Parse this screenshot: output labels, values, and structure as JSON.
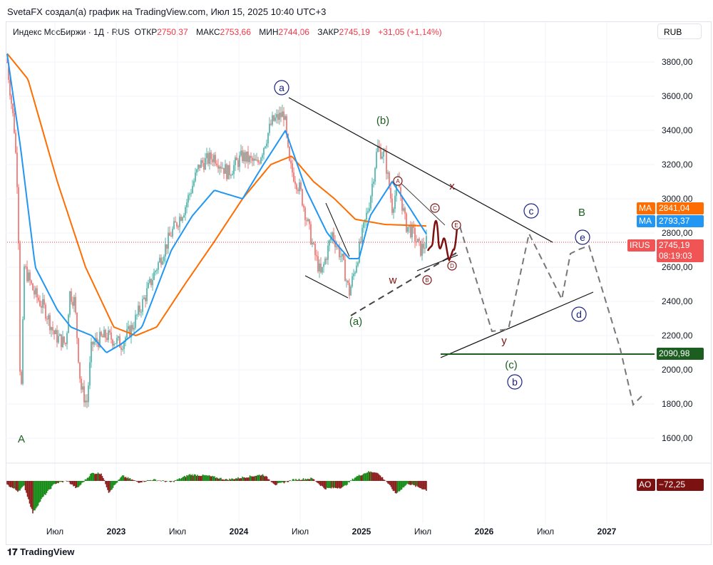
{
  "header": {
    "credit": "SvetaFX создал(а) график на TradingView.com, Июл 15, 2025 10:40 UTC+3",
    "symbol": "Индекс МосБиржи · 1Д · RUS",
    "open_label": "ОТКР",
    "open": "2750,37",
    "high_label": "МАКС",
    "high": "2753,66",
    "low_label": "МИН",
    "low": "2744,06",
    "close_label": "ЗАКР",
    "close": "2745,19",
    "change": "+31,05 (+1,14%)"
  },
  "currency": "RUB",
  "tags": {
    "ma200_label": "MA",
    "ma200": "2841,04",
    "ma50_label": "MA",
    "ma50": "2793,37",
    "symbol_label": "IRUS",
    "price": "2745,19",
    "countdown": "08:19:03",
    "level": "2090,98",
    "ao_label": "AO",
    "ao": "−72,25"
  },
  "colors": {
    "up": "#26a69a",
    "down": "#ef5350",
    "ma200": "#ff6d00",
    "ma50": "#2196f3",
    "ao_up": "#138a13",
    "ao_down": "#8b1a1a",
    "wave_green": "#1b5e20",
    "wave_blue": "#1a237e",
    "wave_red": "#7b1111"
  },
  "chart_data": {
    "type": "line",
    "title": "Индекс МосБиржи · 1Д",
    "ylim": [
      1500,
      3900
    ],
    "yticks": [
      "3800,00",
      "3600,00",
      "3400,00",
      "3200,00",
      "3000,00",
      "2800,00",
      "2600,00",
      "2400,00",
      "2200,00",
      "2000,00",
      "1800,00",
      "1600,00"
    ],
    "xticks": [
      "Июл",
      "2023",
      "Июл",
      "2024",
      "Июл",
      "2025",
      "Июл",
      "2026",
      "Июл",
      "2027"
    ],
    "price_waypoints": [
      [
        2022.11,
        3800
      ],
      [
        2022.17,
        3400
      ],
      [
        2022.2,
        3000
      ],
      [
        2022.22,
        1700
      ],
      [
        2022.25,
        2600
      ],
      [
        2022.33,
        2450
      ],
      [
        2022.42,
        2350
      ],
      [
        2022.5,
        2200
      ],
      [
        2022.59,
        2150
      ],
      [
        2022.62,
        2450
      ],
      [
        2022.66,
        2400
      ],
      [
        2022.71,
        1900
      ],
      [
        2022.76,
        1800
      ],
      [
        2022.8,
        2150
      ],
      [
        2022.92,
        2200
      ],
      [
        2023.04,
        2150
      ],
      [
        2023.13,
        2250
      ],
      [
        2023.22,
        2400
      ],
      [
        2023.33,
        2600
      ],
      [
        2023.45,
        2800
      ],
      [
        2023.56,
        2950
      ],
      [
        2023.68,
        3200
      ],
      [
        2023.8,
        3250
      ],
      [
        2023.91,
        3150
      ],
      [
        2024.03,
        3250
      ],
      [
        2024.15,
        3200
      ],
      [
        2024.27,
        3450
      ],
      [
        2024.37,
        3500
      ],
      [
        2024.41,
        3200
      ],
      [
        2024.5,
        3050
      ],
      [
        2024.61,
        2700
      ],
      [
        2024.67,
        2550
      ],
      [
        2024.76,
        2800
      ],
      [
        2024.84,
        2650
      ],
      [
        2024.9,
        2450
      ],
      [
        2024.95,
        2600
      ],
      [
        2025.01,
        2800
      ],
      [
        2025.07,
        3000
      ],
      [
        2025.13,
        3300
      ],
      [
        2025.19,
        3250
      ],
      [
        2025.25,
        2950
      ],
      [
        2025.3,
        3100
      ],
      [
        2025.36,
        2850
      ],
      [
        2025.42,
        2800
      ],
      [
        2025.48,
        2700
      ],
      [
        2025.53,
        2745
      ]
    ],
    "ma200_waypoints": [
      [
        2022.11,
        3850
      ],
      [
        2022.28,
        3700
      ],
      [
        2022.52,
        3100
      ],
      [
        2022.75,
        2600
      ],
      [
        2022.98,
        2250
      ],
      [
        2023.16,
        2200
      ],
      [
        2023.33,
        2250
      ],
      [
        2023.56,
        2500
      ],
      [
        2023.8,
        2750
      ],
      [
        2024.03,
        3000
      ],
      [
        2024.26,
        3200
      ],
      [
        2024.43,
        3250
      ],
      [
        2024.61,
        3100
      ],
      [
        2024.78,
        3000
      ],
      [
        2024.95,
        2880
      ],
      [
        2025.19,
        2850
      ],
      [
        2025.53,
        2841
      ]
    ],
    "ma50_waypoints": [
      [
        2022.11,
        3850
      ],
      [
        2022.22,
        3300
      ],
      [
        2022.34,
        2600
      ],
      [
        2022.52,
        2350
      ],
      [
        2022.63,
        2250
      ],
      [
        2022.8,
        2200
      ],
      [
        2022.92,
        2100
      ],
      [
        2023.04,
        2150
      ],
      [
        2023.21,
        2250
      ],
      [
        2023.45,
        2700
      ],
      [
        2023.62,
        2900
      ],
      [
        2023.8,
        3050
      ],
      [
        2024.03,
        3000
      ],
      [
        2024.2,
        3200
      ],
      [
        2024.38,
        3400
      ],
      [
        2024.55,
        3050
      ],
      [
        2024.72,
        2800
      ],
      [
        2024.9,
        2650
      ],
      [
        2024.98,
        2650
      ],
      [
        2025.07,
        2900
      ],
      [
        2025.25,
        3100
      ],
      [
        2025.39,
        2950
      ],
      [
        2025.53,
        2793
      ]
    ],
    "ao_waypoints": [
      [
        2022.11,
        -30
      ],
      [
        2022.2,
        -80
      ],
      [
        2022.25,
        -40
      ],
      [
        2022.32,
        -250
      ],
      [
        2022.4,
        -130
      ],
      [
        2022.5,
        -20
      ],
      [
        2022.6,
        0
      ],
      [
        2022.68,
        -60
      ],
      [
        2022.8,
        60
      ],
      [
        2022.88,
        60
      ],
      [
        2022.94,
        -90
      ],
      [
        2023.05,
        40
      ],
      [
        2023.18,
        -10
      ],
      [
        2023.3,
        10
      ],
      [
        2023.45,
        -10
      ],
      [
        2023.6,
        50
      ],
      [
        2023.75,
        40
      ],
      [
        2023.9,
        10
      ],
      [
        2024.05,
        30
      ],
      [
        2024.2,
        50
      ],
      [
        2024.3,
        -30
      ],
      [
        2024.45,
        10
      ],
      [
        2024.6,
        20
      ],
      [
        2024.7,
        -60
      ],
      [
        2024.85,
        -50
      ],
      [
        2024.95,
        30
      ],
      [
        2025.05,
        70
      ],
      [
        2025.12,
        70
      ],
      [
        2025.2,
        0
      ],
      [
        2025.28,
        -100
      ],
      [
        2025.38,
        -20
      ],
      [
        2025.53,
        -72
      ]
    ]
  },
  "waves": {
    "a_lower": "a",
    "b_paren": "(b)",
    "a_paren": "(a)",
    "A": "A",
    "B": "B",
    "c_lower": "c",
    "e_lower": "e",
    "d_lower": "d",
    "b_lower": "b",
    "c_paren": "(c)",
    "y": "y",
    "x": "x",
    "w": "w",
    "A_sub": "A",
    "C_sub": "C",
    "E_sub": "E",
    "D_sub": "D",
    "B_sub": "B"
  },
  "footer": {
    "brand": "TradingView"
  }
}
